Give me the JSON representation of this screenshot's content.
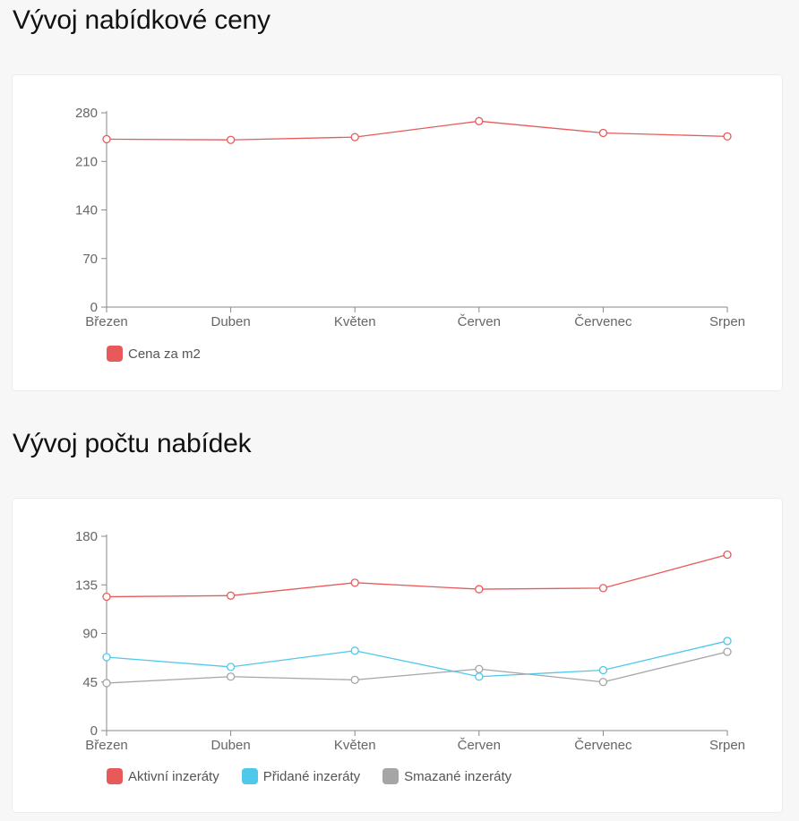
{
  "sections": [
    {
      "title": "Vývoj nabídkové ceny"
    },
    {
      "title": "Vývoj počtu nabídek"
    }
  ],
  "chart_data": [
    {
      "type": "line",
      "title": "Vývoj nabídkové ceny",
      "categories": [
        "Březen",
        "Duben",
        "Květen",
        "Červen",
        "Červenec",
        "Srpen"
      ],
      "yticks": [
        "0",
        "70",
        "140",
        "210",
        "280"
      ],
      "ylim": [
        0,
        280
      ],
      "grid": false,
      "legend_position": "bottom-left",
      "series": [
        {
          "name": "Cena za m2",
          "color": "#e85a5a",
          "values": [
            242,
            241,
            245,
            268,
            251,
            246
          ]
        }
      ]
    },
    {
      "type": "line",
      "title": "Vývoj počtu nabídek",
      "categories": [
        "Březen",
        "Duben",
        "Květen",
        "Červen",
        "Červenec",
        "Srpen"
      ],
      "yticks": [
        "0",
        "45",
        "90",
        "135",
        "180"
      ],
      "ylim": [
        0,
        180
      ],
      "grid": false,
      "legend_position": "bottom-left",
      "series": [
        {
          "name": "Aktivní inzeráty",
          "color": "#e85a5a",
          "values": [
            124,
            125,
            137,
            131,
            132,
            163
          ]
        },
        {
          "name": "Přidané inzeráty",
          "color": "#4fc8ea",
          "values": [
            68,
            59,
            74,
            50,
            56,
            83
          ]
        },
        {
          "name": "Smazané inzeráty",
          "color": "#a5a5a5",
          "values": [
            44,
            50,
            47,
            57,
            45,
            73
          ]
        }
      ]
    }
  ]
}
